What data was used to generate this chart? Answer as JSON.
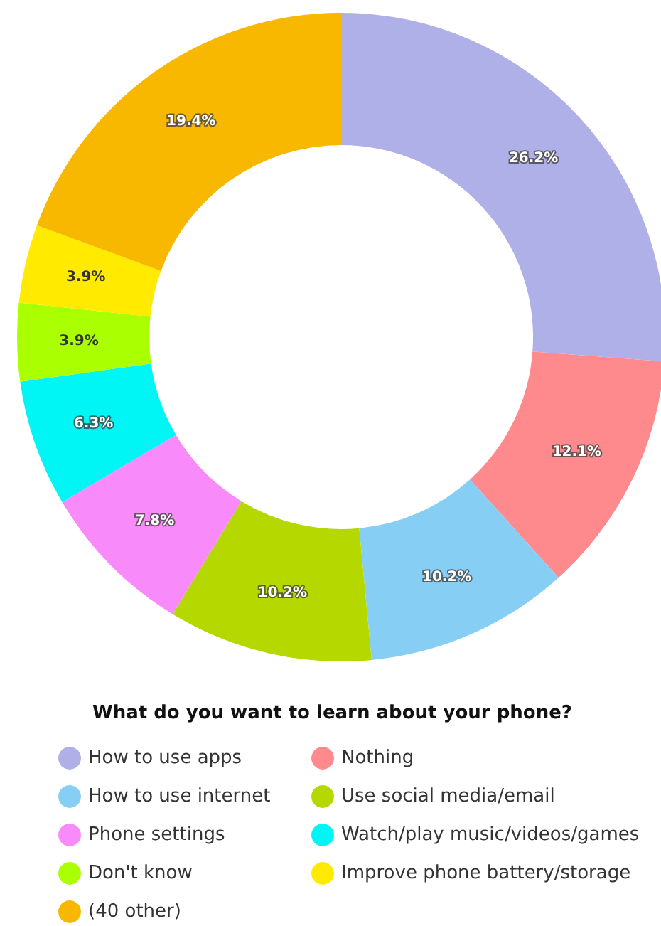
{
  "chart_data": {
    "type": "donut",
    "legend_title": "What do you want to learn about your phone?",
    "categories": [
      "How to use apps",
      "Nothing",
      "How to use internet",
      "Use social media/email",
      "Phone settings",
      "Watch/play music/videos/games",
      "Don't know",
      "Improve phone battery/storage",
      "(40 other)"
    ],
    "values": [
      26.2,
      12.1,
      10.2,
      10.2,
      7.8,
      6.3,
      3.9,
      3.9,
      19.4
    ],
    "value_labels": [
      "26.2%",
      "12.1%",
      "10.2%",
      "10.2%",
      "7.8%",
      "6.3%",
      "3.9%",
      "3.9%",
      "19.4%"
    ],
    "colors": [
      "#b0b0e8",
      "#ff8a8e",
      "#87cef5",
      "#b5d900",
      "#f98af9",
      "#00f5f5",
      "#aaff00",
      "#ffea00",
      "#f9b800"
    ],
    "legend": "bottom"
  }
}
